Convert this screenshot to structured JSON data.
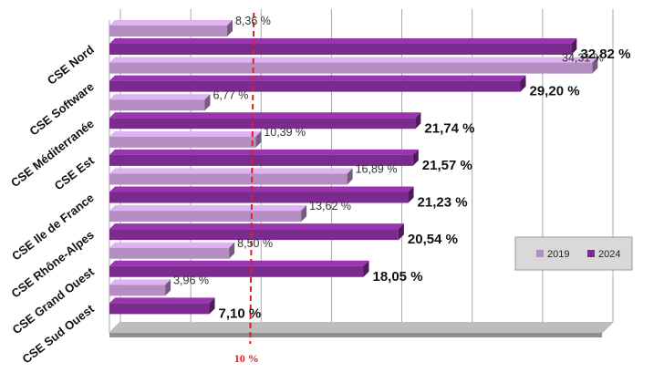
{
  "chart_data": {
    "type": "bar",
    "orientation": "horizontal",
    "categories": [
      "CSE Nord",
      "CSE Software",
      "CSE Méditerranée",
      "CSE Est",
      "CSE Ile de France",
      "CSE Rhône-Alpes",
      "CSE Grand Ouest",
      "CSE Sud Ouest"
    ],
    "series": [
      {
        "name": "2019",
        "values": [
          8.36,
          34.31,
          6.77,
          10.39,
          16.89,
          13.62,
          8.5,
          3.96
        ],
        "labels": [
          "8,36 %",
          "34,31 %",
          "6,77 %",
          "10,39 %",
          "16,89 %",
          "13,62 %",
          "8,50 %",
          "3,96 %"
        ]
      },
      {
        "name": "2024",
        "values": [
          32.82,
          29.2,
          21.74,
          21.57,
          21.23,
          20.54,
          18.05,
          7.1
        ],
        "labels": [
          "32,82 %",
          "29,20 %",
          "21,74 %",
          "21,57 %",
          "21,23 %",
          "20,54 %",
          "18,05 %",
          "7,10 %"
        ]
      }
    ],
    "reference_line": {
      "value": 10,
      "label": "10 %"
    },
    "xlim": [
      0,
      35
    ],
    "grid": true,
    "legend": "right",
    "colors": {
      "2019": "#b48ec2",
      "2024": "#7b2a8e",
      "reference": "#e02020",
      "grid": "#a8a8a8",
      "floor": "#bdbdbd"
    }
  }
}
